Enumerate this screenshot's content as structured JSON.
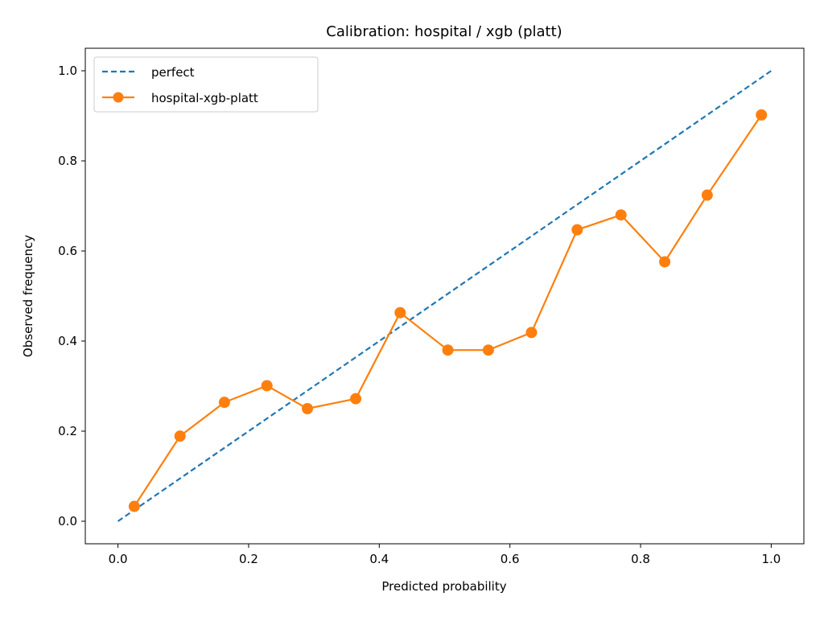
{
  "chart_data": {
    "type": "line",
    "title": "Calibration: hospital / xgb (platt)",
    "xlabel": "Predicted probability",
    "ylabel": "Observed frequency",
    "xlim": [
      -0.05,
      1.05
    ],
    "ylim": [
      -0.05,
      1.05
    ],
    "xticks": [
      0.0,
      0.2,
      0.4,
      0.6,
      0.8,
      1.0
    ],
    "yticks": [
      0.0,
      0.2,
      0.4,
      0.6,
      0.8,
      1.0
    ],
    "xtick_labels": [
      "0.0",
      "0.2",
      "0.4",
      "0.6",
      "0.8",
      "1.0"
    ],
    "ytick_labels": [
      "0.0",
      "0.2",
      "0.4",
      "0.6",
      "0.8",
      "1.0"
    ],
    "grid": false,
    "legend": {
      "placement": "upper-left"
    },
    "series": [
      {
        "name": "perfect",
        "style": "dashed",
        "color": "#1f77b4",
        "x": [
          0.0,
          1.0
        ],
        "y": [
          0.0,
          1.0
        ]
      },
      {
        "name": "hospital-xgb-platt",
        "style": "solid",
        "marker": "circle",
        "color": "#ff7f0e",
        "x": [
          0.025,
          0.095,
          0.163,
          0.228,
          0.29,
          0.364,
          0.432,
          0.505,
          0.567,
          0.633,
          0.703,
          0.77,
          0.837,
          0.902,
          0.985
        ],
        "y": [
          0.033,
          0.189,
          0.264,
          0.301,
          0.25,
          0.272,
          0.463,
          0.38,
          0.38,
          0.419,
          0.647,
          0.68,
          0.576,
          0.724,
          0.902
        ]
      }
    ]
  }
}
